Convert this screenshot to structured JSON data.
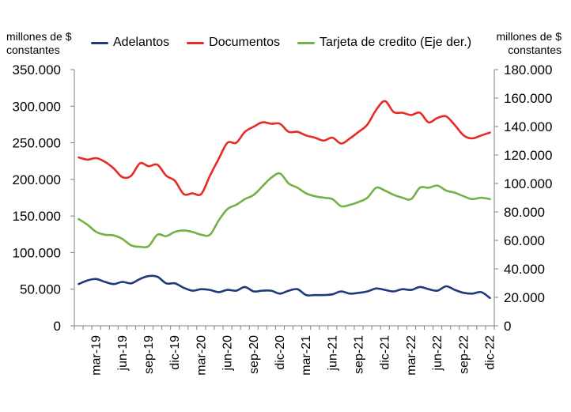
{
  "chart_data": {
    "type": "line",
    "left_unit_label": "millones de $ constantes",
    "right_unit_label": "millones de $ constantes",
    "left_axis": {
      "ylim": [
        0,
        350000
      ],
      "ticks": [
        "0",
        "50.000",
        "100.000",
        "150.000",
        "200.000",
        "250.000",
        "300.000",
        "350.000"
      ]
    },
    "right_axis": {
      "ylim": [
        0,
        180000
      ],
      "ticks": [
        "0",
        "20.000",
        "40.000",
        "60.000",
        "80.000",
        "100.000",
        "120.000",
        "140.000",
        "160.000",
        "180.000"
      ]
    },
    "x_tick_labels": [
      "mar-19",
      "jun-19",
      "sep-19",
      "dic-19",
      "mar-20",
      "jun-20",
      "sep-20",
      "dic-20",
      "mar-21",
      "jun-21",
      "sep-21",
      "dic-21",
      "mar-22",
      "jun-22",
      "sep-22",
      "dic-22"
    ],
    "x_tick_month_index": [
      2,
      5,
      8,
      11,
      14,
      17,
      20,
      23,
      26,
      29,
      32,
      35,
      38,
      41,
      44,
      47
    ],
    "months": [
      "ene-19",
      "feb-19",
      "mar-19",
      "abr-19",
      "may-19",
      "jun-19",
      "jul-19",
      "ago-19",
      "sep-19",
      "oct-19",
      "nov-19",
      "dic-19",
      "ene-20",
      "feb-20",
      "mar-20",
      "abr-20",
      "may-20",
      "jun-20",
      "jul-20",
      "ago-20",
      "sep-20",
      "oct-20",
      "nov-20",
      "dic-20",
      "ene-21",
      "feb-21",
      "mar-21",
      "abr-21",
      "may-21",
      "jun-21",
      "jul-21",
      "ago-21",
      "sep-21",
      "oct-21",
      "nov-21",
      "dic-21",
      "ene-22",
      "feb-22",
      "mar-22",
      "abr-22",
      "may-22",
      "jun-22",
      "jul-22",
      "ago-22",
      "sep-22",
      "oct-22",
      "nov-22",
      "dic-22"
    ],
    "series": [
      {
        "name": "Adelantos",
        "axis": "left",
        "color": "#1f3a7a",
        "values": [
          57000,
          62000,
          64000,
          60000,
          57000,
          60000,
          58000,
          64000,
          68000,
          67000,
          58000,
          58000,
          52000,
          48000,
          50000,
          49000,
          46000,
          49000,
          48000,
          53000,
          47000,
          48000,
          48000,
          44000,
          48000,
          50000,
          42000,
          42000,
          42000,
          43000,
          47000,
          44000,
          45000,
          47000,
          51000,
          49000,
          47000,
          50000,
          49000,
          53000,
          50000,
          48000,
          54000,
          49000,
          45000,
          44000,
          46000,
          38000
        ]
      },
      {
        "name": "Documentos",
        "axis": "left",
        "color": "#e82a25",
        "values": [
          230000,
          227000,
          229000,
          224000,
          215000,
          203000,
          205000,
          222000,
          218000,
          220000,
          205000,
          198000,
          180000,
          181000,
          180000,
          205000,
          228000,
          250000,
          250000,
          265000,
          272000,
          278000,
          276000,
          276000,
          265000,
          265000,
          260000,
          257000,
          253000,
          257000,
          249000,
          256000,
          265000,
          275000,
          295000,
          307000,
          292000,
          291000,
          288000,
          291000,
          278000,
          284000,
          286000,
          274000,
          260000,
          256000,
          260000,
          264000
        ]
      },
      {
        "name": "Tarjeta de credito (Eje der.)",
        "axis": "right",
        "color": "#72b244",
        "values": [
          75000,
          71000,
          66000,
          64000,
          63500,
          61000,
          56500,
          55500,
          56000,
          64000,
          63000,
          66000,
          67000,
          66000,
          64000,
          64000,
          74000,
          82000,
          85000,
          89000,
          92000,
          98000,
          104000,
          107000,
          100000,
          97000,
          93000,
          91000,
          90000,
          89000,
          84000,
          85000,
          87000,
          90000,
          97000,
          95000,
          92000,
          90000,
          89000,
          97000,
          97000,
          98500,
          95000,
          93500,
          91000,
          89000,
          90000,
          89000
        ]
      }
    ]
  }
}
